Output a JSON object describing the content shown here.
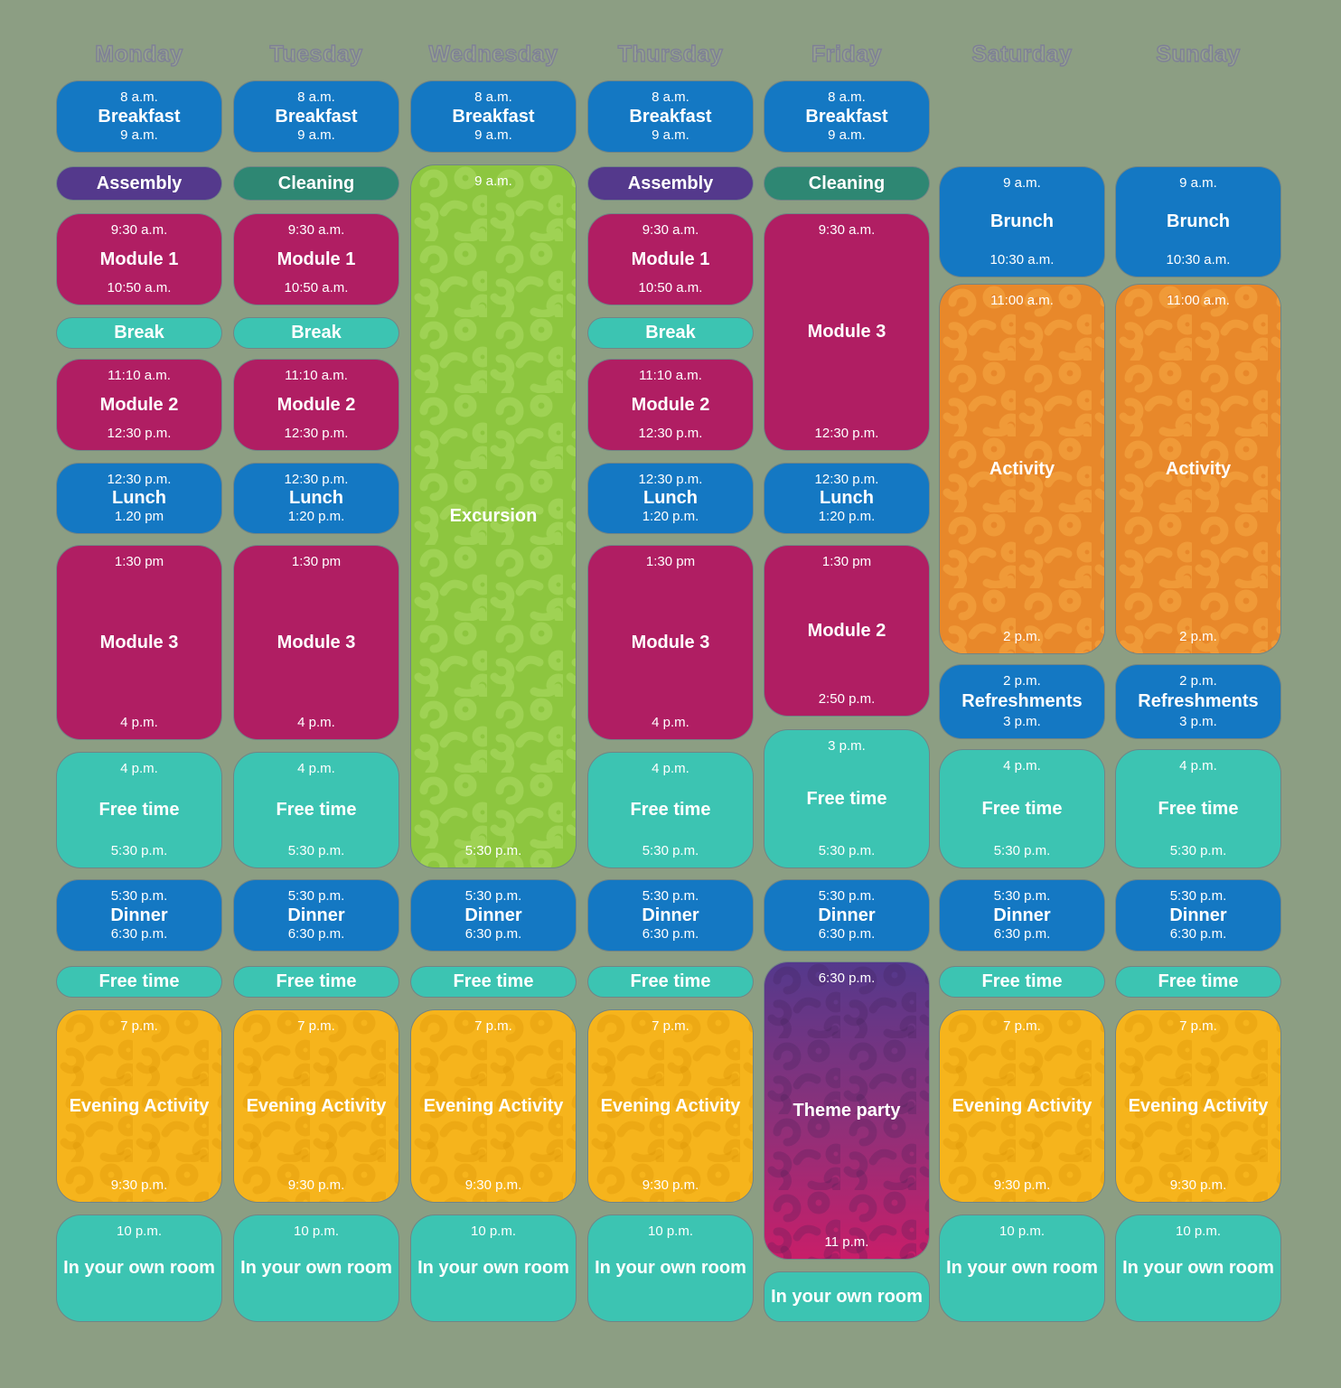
{
  "palette": {
    "background": "#8C9E83",
    "blue": "#1478C3",
    "purple": "#54398C",
    "green": "#2E8773",
    "magenta": "#B01E63",
    "turquoise": "#3CC4B2",
    "lime": "#8DC63F",
    "yellow": "#F6B41C",
    "orange": "#E8882A",
    "party": [
      "#54398C",
      "#8F3079",
      "#C81E69"
    ]
  },
  "days": [
    {
      "label": "Monday",
      "blocks": [
        {
          "color": "blue",
          "start": "8 a.m.",
          "title": "Breakfast",
          "end": "9 a.m."
        },
        {
          "color": "purple",
          "title": "Assembly"
        },
        {
          "color": "magenta",
          "start": "9:30 a.m.",
          "title": "Module 1",
          "end": "10:50 a.m."
        },
        {
          "color": "turquoise",
          "title": "Break"
        },
        {
          "color": "magenta",
          "start": "11:10 a.m.",
          "title": "Module 2",
          "end": "12:30 p.m."
        },
        {
          "color": "blue",
          "start": "12:30 p.m.",
          "title": "Lunch",
          "end": "1.20 pm"
        },
        {
          "color": "magenta",
          "start": "1:30 pm",
          "title": "Module 3",
          "end": "4 p.m."
        },
        {
          "color": "turquoise",
          "start": "4 p.m.",
          "title": "Free time",
          "end": "5:30 p.m."
        },
        {
          "color": "blue",
          "start": "5:30 p.m.",
          "title": "Dinner",
          "end": "6:30 p.m."
        },
        {
          "color": "turquoise",
          "title": "Free time"
        },
        {
          "color": "yellow",
          "pattern": "yellow",
          "start": "7 p.m.",
          "title": "Evening Activity",
          "end": "9:30 p.m."
        },
        {
          "color": "turquoise",
          "start": "10 p.m.",
          "title": "In your own room"
        }
      ]
    },
    {
      "label": "Tuesday",
      "blocks": [
        {
          "color": "blue",
          "start": "8 a.m.",
          "title": "Breakfast",
          "end": "9 a.m."
        },
        {
          "color": "green",
          "title": "Cleaning"
        },
        {
          "color": "magenta",
          "start": "9:30 a.m.",
          "title": "Module 1",
          "end": "10:50 a.m."
        },
        {
          "color": "turquoise",
          "title": "Break"
        },
        {
          "color": "magenta",
          "start": "11:10 a.m.",
          "title": "Module 2",
          "end": "12:30 p.m."
        },
        {
          "color": "blue",
          "start": "12:30 p.m.",
          "title": "Lunch",
          "end": "1:20 p.m."
        },
        {
          "color": "magenta",
          "start": "1:30 pm",
          "title": "Module 3",
          "end": "4 p.m."
        },
        {
          "color": "turquoise",
          "start": "4 p.m.",
          "title": "Free time",
          "end": "5:30 p.m."
        },
        {
          "color": "blue",
          "start": "5:30 p.m.",
          "title": "Dinner",
          "end": "6:30 p.m."
        },
        {
          "color": "turquoise",
          "title": "Free time"
        },
        {
          "color": "yellow",
          "pattern": "yellow",
          "start": "7 p.m.",
          "title": "Evening Activity",
          "end": "9:30 p.m."
        },
        {
          "color": "turquoise",
          "start": "10 p.m.",
          "title": "In your own room"
        }
      ]
    },
    {
      "label": "Wednesday",
      "blocks": [
        {
          "color": "blue",
          "start": "8 a.m.",
          "title": "Breakfast",
          "end": "9 a.m."
        },
        {
          "color": "lime",
          "pattern": "lime",
          "start": "9 a.m.",
          "title": "Excursion",
          "end": "5:30 p.m."
        },
        {
          "color": "blue",
          "start": "5:30 p.m.",
          "title": "Dinner",
          "end": "6:30 p.m."
        },
        {
          "color": "turquoise",
          "title": "Free time"
        },
        {
          "color": "yellow",
          "pattern": "yellow",
          "start": "7 p.m.",
          "title": "Evening Activity",
          "end": "9:30 p.m."
        },
        {
          "color": "turquoise",
          "start": "10 p.m.",
          "title": "In your own room"
        }
      ]
    },
    {
      "label": "Thursday",
      "blocks": [
        {
          "color": "blue",
          "start": "8 a.m.",
          "title": "Breakfast",
          "end": "9 a.m."
        },
        {
          "color": "purple",
          "title": "Assembly"
        },
        {
          "color": "magenta",
          "start": "9:30 a.m.",
          "title": "Module 1",
          "end": "10:50 a.m."
        },
        {
          "color": "turquoise",
          "title": "Break"
        },
        {
          "color": "magenta",
          "start": "11:10 a.m.",
          "title": "Module 2",
          "end": "12:30 p.m."
        },
        {
          "color": "blue",
          "start": "12:30 p.m.",
          "title": "Lunch",
          "end": "1:20 p.m."
        },
        {
          "color": "magenta",
          "start": "1:30 pm",
          "title": "Module 3",
          "end": "4 p.m."
        },
        {
          "color": "turquoise",
          "start": "4 p.m.",
          "title": "Free time",
          "end": "5:30 p.m."
        },
        {
          "color": "blue",
          "start": "5:30 p.m.",
          "title": "Dinner",
          "end": "6:30 p.m."
        },
        {
          "color": "turquoise",
          "title": "Free time"
        },
        {
          "color": "yellow",
          "pattern": "yellow",
          "start": "7 p.m.",
          "title": "Evening Activity",
          "end": "9:30 p.m."
        },
        {
          "color": "turquoise",
          "start": "10 p.m.",
          "title": "In your own room"
        }
      ]
    },
    {
      "label": "Friday",
      "blocks": [
        {
          "color": "blue",
          "start": "8 a.m.",
          "title": "Breakfast",
          "end": "9 a.m."
        },
        {
          "color": "green",
          "title": "Cleaning"
        },
        {
          "color": "magenta",
          "start": "9:30 a.m.",
          "title": "Module 3",
          "end": "12:30 p.m."
        },
        {
          "color": "blue",
          "start": "12:30 p.m.",
          "title": "Lunch",
          "end": "1:20 p.m."
        },
        {
          "color": "magenta",
          "start": "1:30 pm",
          "title": "Module 2",
          "end": "2:50 p.m."
        },
        {
          "color": "turquoise",
          "start": "3 p.m.",
          "title": "Free time",
          "end": "5:30 p.m."
        },
        {
          "color": "blue",
          "start": "5:30 p.m.",
          "title": "Dinner",
          "end": "6:30 p.m."
        },
        {
          "color": "party",
          "pattern": "party",
          "start": "6:30 p.m.",
          "title": "Theme party",
          "end": "11 p.m."
        },
        {
          "color": "turquoise",
          "title": "In your own room"
        }
      ]
    },
    {
      "label": "Saturday",
      "blocks": [
        {
          "color": "blue",
          "start": "9 a.m.",
          "title": "Brunch",
          "end": "10:30 a.m."
        },
        {
          "color": "orange",
          "pattern": "orange",
          "start": "11:00 a.m.",
          "title": "Activity",
          "end": "2 p.m."
        },
        {
          "color": "blue",
          "start": "2 p.m.",
          "title": "Refreshments",
          "end": "3 p.m."
        },
        {
          "color": "turquoise",
          "start": "4 p.m.",
          "title": "Free time",
          "end": "5:30 p.m."
        },
        {
          "color": "blue",
          "start": "5:30 p.m.",
          "title": "Dinner",
          "end": "6:30 p.m."
        },
        {
          "color": "turquoise",
          "title": "Free time"
        },
        {
          "color": "yellow",
          "pattern": "yellow",
          "start": "7 p.m.",
          "title": "Evening Activity",
          "end": "9:30 p.m."
        },
        {
          "color": "turquoise",
          "start": "10 p.m.",
          "title": "In your own room"
        }
      ]
    },
    {
      "label": "Sunday",
      "blocks": [
        {
          "color": "blue",
          "start": "9 a.m.",
          "title": "Brunch",
          "end": "10:30 a.m."
        },
        {
          "color": "orange",
          "pattern": "orange",
          "start": "11:00 a.m.",
          "title": "Activity",
          "end": "2 p.m."
        },
        {
          "color": "blue",
          "start": "2 p.m.",
          "title": "Refreshments",
          "end": "3 p.m."
        },
        {
          "color": "turquoise",
          "start": "4 p.m.",
          "title": "Free time",
          "end": "5:30 p.m."
        },
        {
          "color": "blue",
          "start": "5:30 p.m.",
          "title": "Dinner",
          "end": "6:30 p.m."
        },
        {
          "color": "turquoise",
          "title": "Free time"
        },
        {
          "color": "yellow",
          "pattern": "yellow",
          "start": "7 p.m.",
          "title": "Evening Activity",
          "end": "9:30 p.m."
        },
        {
          "color": "turquoise",
          "start": "10 p.m.",
          "title": "In your own room"
        }
      ]
    }
  ]
}
